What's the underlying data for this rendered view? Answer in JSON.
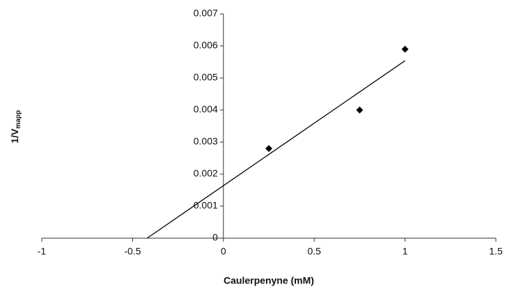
{
  "chart_data": {
    "type": "scatter",
    "xlabel": "Caulerpenyne (mM)",
    "ylabel": "1/V",
    "ylabel_sub": "mapp",
    "x": [
      0.25,
      0.75,
      1.0
    ],
    "series": [
      {
        "color": "#000000",
        "values": [
          0.0028,
          0.004,
          0.0059
        ]
      }
    ],
    "trendline": {
      "x": [
        -0.42,
        1.0
      ],
      "values": [
        0,
        0.00554
      ],
      "color": "#000000"
    },
    "xlim": [
      -1,
      1.5
    ],
    "xticks": [
      -1,
      -0.5,
      0,
      0.5,
      1,
      1.5
    ],
    "ylim": [
      0,
      0.007
    ],
    "yticks": [
      0,
      0.001,
      0.002,
      0.003,
      0.004,
      0.005,
      0.006,
      0.007
    ],
    "grid": false
  }
}
